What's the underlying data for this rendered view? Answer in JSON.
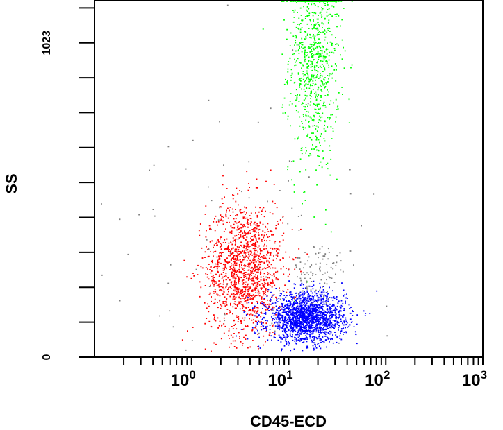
{
  "chart_data": {
    "type": "scatter",
    "title": "",
    "xlabel": "CD45-ECD",
    "ylabel": "SS",
    "x_scale": "log",
    "xlim": [
      0.1,
      1000
    ],
    "ylim": [
      0,
      1160
    ],
    "x_tick_labels": [
      {
        "value": 1,
        "base": "10",
        "exp": "0"
      },
      {
        "value": 10,
        "base": "10",
        "exp": "1"
      },
      {
        "value": 100,
        "base": "10",
        "exp": "2"
      },
      {
        "value": 1000,
        "base": "10",
        "exp": "3"
      }
    ],
    "y_tick_labels": [
      {
        "value": 0,
        "text": "0"
      },
      {
        "value": 1023,
        "text": "1023"
      }
    ],
    "y_tick_count": 11,
    "grid": false,
    "legend": "none",
    "populations": [
      {
        "color": "#00ff00",
        "x_center": 18,
        "x_log_sd": 0.13,
        "y_center": 980,
        "y_sd": 190,
        "count": 900
      },
      {
        "color": "#ff0000",
        "x_center": 3.5,
        "x_log_sd": 0.2,
        "y_center": 290,
        "y_sd": 110,
        "count": 1400
      },
      {
        "color": "#0000ff",
        "x_center": 15,
        "x_log_sd": 0.2,
        "y_center": 130,
        "y_sd": 40,
        "count": 1800
      },
      {
        "color": "#808080",
        "x_center": 20,
        "x_log_sd": 0.15,
        "y_center": 280,
        "y_sd": 45,
        "count": 90
      },
      {
        "color": "#808080",
        "x_center": 3,
        "x_log_sd": 0.8,
        "y_center": 350,
        "y_sd": 260,
        "count": 110
      }
    ]
  }
}
